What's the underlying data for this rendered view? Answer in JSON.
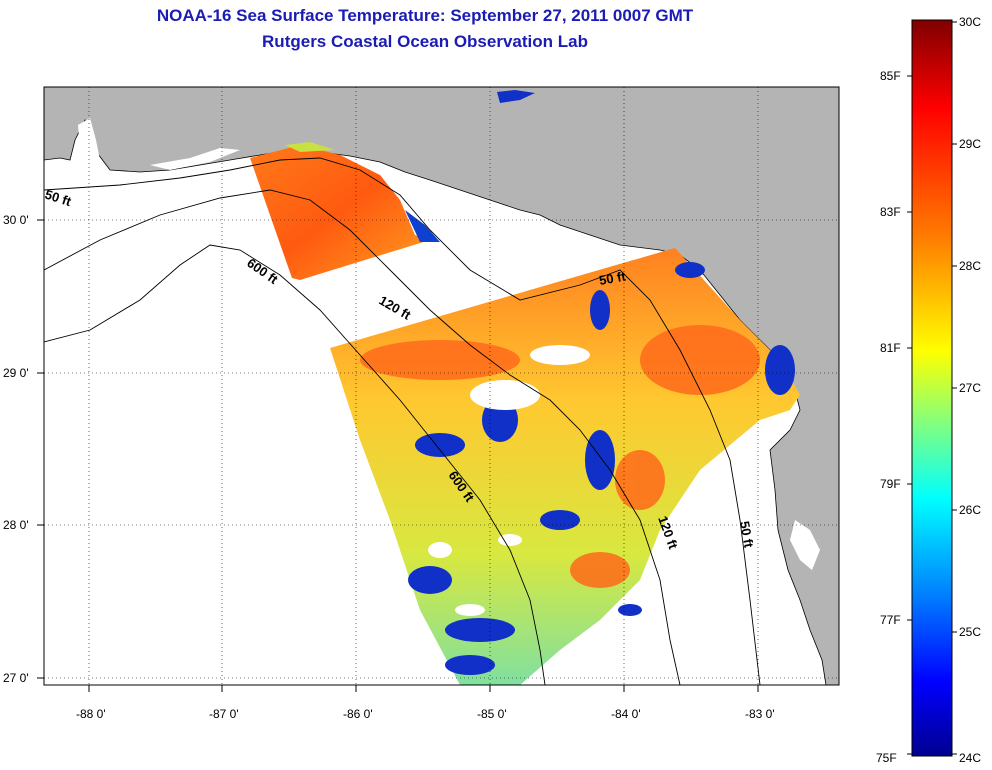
{
  "title": {
    "line1": "NOAA-16 Sea Surface Temperature:  September 27, 2011 0007 GMT",
    "line2": "Rutgers Coastal Ocean Observation Lab"
  },
  "map": {
    "land_color": "#b4b4b4",
    "ocean_color": "#ffffff",
    "lon_ticks": [
      "-88 0'",
      "-87 0'",
      "-86 0'",
      "-85 0'",
      "-84 0'",
      "-83 0'"
    ],
    "lat_ticks": [
      "30 0'",
      "29 0'",
      "28 0'",
      "27 0'"
    ],
    "contour_labels": [
      "50 ft",
      "600 ft",
      "120 ft",
      "50 ft",
      "600 ft",
      "120 ft",
      "50 ft"
    ]
  },
  "colorbar": {
    "celsius_labels": [
      "30C",
      "29C",
      "28C",
      "27C",
      "26C",
      "25C",
      "24C"
    ],
    "fahrenheit_labels": [
      "85F",
      "83F",
      "81F",
      "79F",
      "77F",
      "75F"
    ],
    "colormap": [
      "#7f0000",
      "#ff0000",
      "#ff8000",
      "#ffff00",
      "#80ff80",
      "#00ffff",
      "#0080ff",
      "#0000ff",
      "#00008f"
    ]
  }
}
